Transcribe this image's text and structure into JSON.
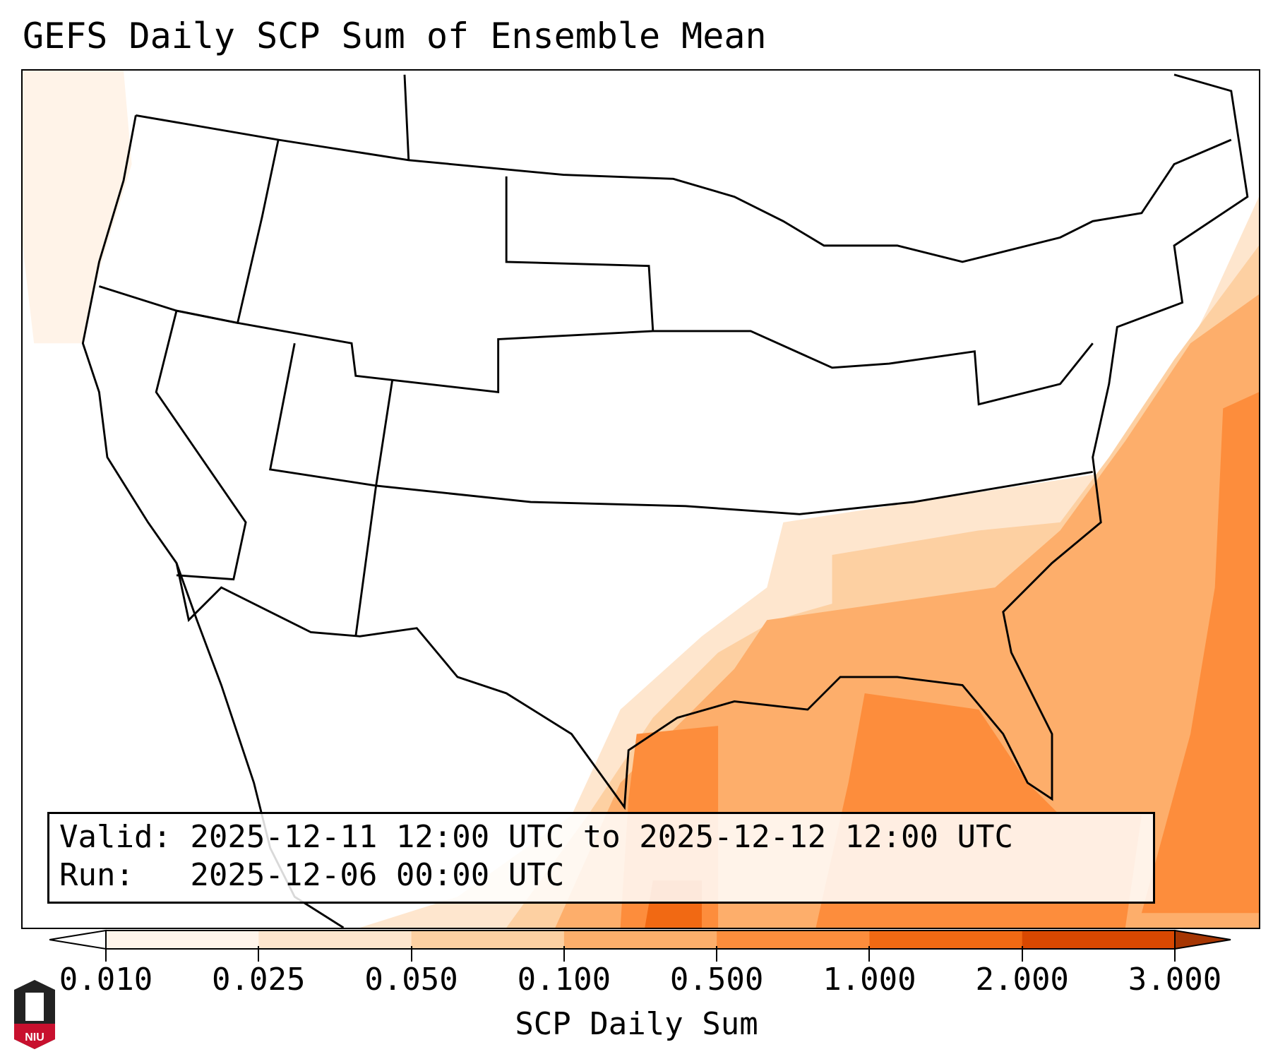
{
  "title": "GEFS Daily SCP Sum of Ensemble Mean",
  "info": {
    "valid": "Valid: 2025-12-11 12:00 UTC to 2025-12-12 12:00 UTC",
    "run": "Run:   2025-12-06 00:00 UTC"
  },
  "colorbar": {
    "label": "SCP Daily Sum",
    "ticks": [
      "0.010",
      "0.025",
      "0.050",
      "0.100",
      "0.500",
      "1.000",
      "2.000",
      "3.000"
    ],
    "colors": [
      "#fff5eb",
      "#fee6ce",
      "#fdd0a2",
      "#fdae6b",
      "#fd8d3c",
      "#f16913",
      "#d94801"
    ],
    "under_color": "#ffffff",
    "over_color": "#a63603"
  },
  "logo": {
    "text": "NIU"
  }
}
